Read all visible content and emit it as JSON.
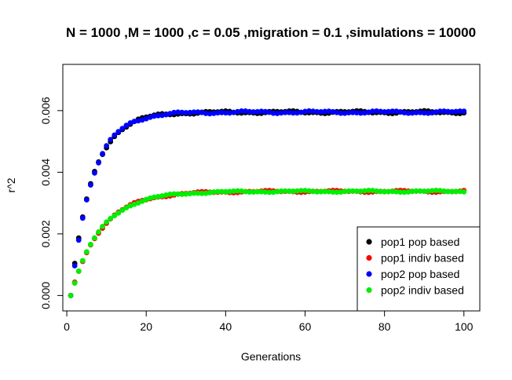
{
  "chart_data": {
    "type": "scatter",
    "title": "N = 1000 ,M = 1000 ,c = 0.05 ,migration = 0.1 ,simulations = 10000",
    "xlabel": "Generations",
    "ylabel": "r^2",
    "xlim": [
      -1,
      104
    ],
    "ylim": [
      -0.0005,
      0.0075
    ],
    "xticks": [
      0,
      20,
      40,
      60,
      80,
      100
    ],
    "xtick_labels": [
      "0",
      "20",
      "40",
      "60",
      "80",
      "100"
    ],
    "yticks": [
      0.0,
      0.002,
      0.004,
      0.006
    ],
    "ytick_labels": [
      "0.000",
      "0.002",
      "0.004",
      "0.006"
    ],
    "grid": false,
    "legend_position": "bottom-right",
    "x_range": [
      1,
      100
    ],
    "series": [
      {
        "name": "pop1 pop based",
        "color": "#000000",
        "plateau": 0.00595,
        "tau": 5.4,
        "wiggle": 3e-05
      },
      {
        "name": "pop1 indiv based",
        "color": "#ff0000",
        "plateau": 0.00338,
        "tau": 7.5,
        "wiggle": 2e-05
      },
      {
        "name": "pop2 pop based",
        "color": "#0000ff",
        "plateau": 0.00595,
        "tau": 5.4,
        "wiggle": 3e-05
      },
      {
        "name": "pop2 indiv based",
        "color": "#00ee00",
        "plateau": 0.00338,
        "tau": 7.5,
        "wiggle": 2e-05
      }
    ]
  }
}
